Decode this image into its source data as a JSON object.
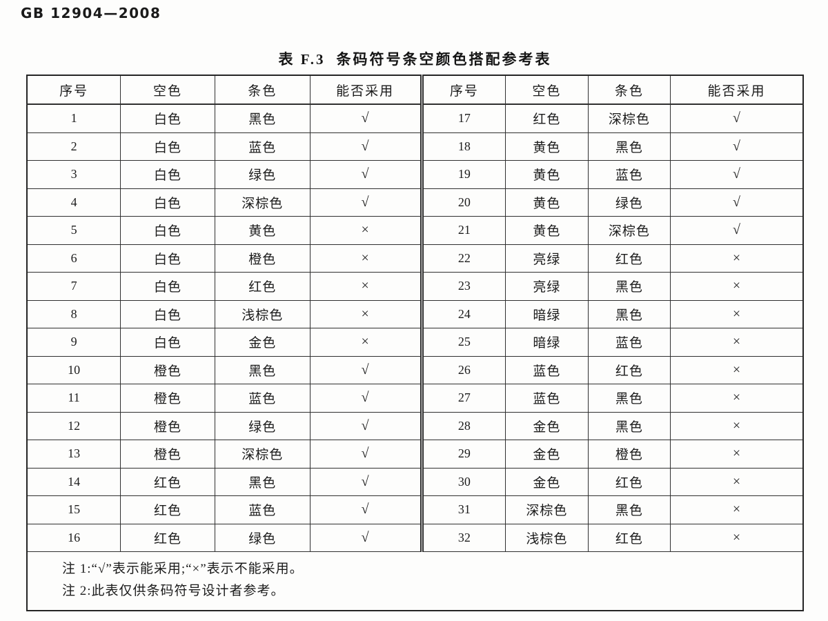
{
  "page": {
    "doc_code": "GB 12904—2008",
    "table_number": "表 F.3",
    "table_caption": "条码符号条空颜色搭配参考表"
  },
  "table": {
    "columns": [
      "序号",
      "空色",
      "条色",
      "能否采用"
    ],
    "mark_yes": "√",
    "mark_no": "×",
    "rows_left": [
      [
        "1",
        "白色",
        "黑色",
        "√"
      ],
      [
        "2",
        "白色",
        "蓝色",
        "√"
      ],
      [
        "3",
        "白色",
        "绿色",
        "√"
      ],
      [
        "4",
        "白色",
        "深棕色",
        "√"
      ],
      [
        "5",
        "白色",
        "黄色",
        "×"
      ],
      [
        "6",
        "白色",
        "橙色",
        "×"
      ],
      [
        "7",
        "白色",
        "红色",
        "×"
      ],
      [
        "8",
        "白色",
        "浅棕色",
        "×"
      ],
      [
        "9",
        "白色",
        "金色",
        "×"
      ],
      [
        "10",
        "橙色",
        "黑色",
        "√"
      ],
      [
        "11",
        "橙色",
        "蓝色",
        "√"
      ],
      [
        "12",
        "橙色",
        "绿色",
        "√"
      ],
      [
        "13",
        "橙色",
        "深棕色",
        "√"
      ],
      [
        "14",
        "红色",
        "黑色",
        "√"
      ],
      [
        "15",
        "红色",
        "蓝色",
        "√"
      ],
      [
        "16",
        "红色",
        "绿色",
        "√"
      ]
    ],
    "rows_right": [
      [
        "17",
        "红色",
        "深棕色",
        "√"
      ],
      [
        "18",
        "黄色",
        "黑色",
        "√"
      ],
      [
        "19",
        "黄色",
        "蓝色",
        "√"
      ],
      [
        "20",
        "黄色",
        "绿色",
        "√"
      ],
      [
        "21",
        "黄色",
        "深棕色",
        "√"
      ],
      [
        "22",
        "亮绿",
        "红色",
        "×"
      ],
      [
        "23",
        "亮绿",
        "黑色",
        "×"
      ],
      [
        "24",
        "暗绿",
        "黑色",
        "×"
      ],
      [
        "25",
        "暗绿",
        "蓝色",
        "×"
      ],
      [
        "26",
        "蓝色",
        "红色",
        "×"
      ],
      [
        "27",
        "蓝色",
        "黑色",
        "×"
      ],
      [
        "28",
        "金色",
        "黑色",
        "×"
      ],
      [
        "29",
        "金色",
        "橙色",
        "×"
      ],
      [
        "30",
        "金色",
        "红色",
        "×"
      ],
      [
        "31",
        "深棕色",
        "黑色",
        "×"
      ],
      [
        "32",
        "浅棕色",
        "红色",
        "×"
      ]
    ],
    "notes": [
      "注 1:“√”表示能采用;“×”表示不能采用。",
      "注 2:此表仅供条码符号设计者参考。"
    ]
  }
}
